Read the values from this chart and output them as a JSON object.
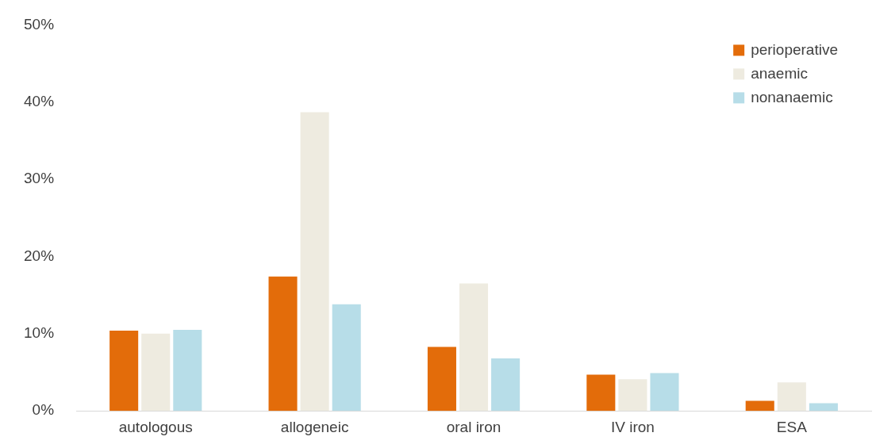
{
  "chart_data": {
    "type": "bar",
    "categories": [
      "autologous",
      "allogeneic",
      "oral iron",
      "IV iron",
      "ESA"
    ],
    "series": [
      {
        "name": "perioperative",
        "color": "#e36c0a",
        "values": [
          10.4,
          17.4,
          8.3,
          4.7,
          1.3
        ]
      },
      {
        "name": "anaemic",
        "color": "#eeebe0",
        "values": [
          10.0,
          38.7,
          16.5,
          4.1,
          3.7
        ]
      },
      {
        "name": "nonanaemic",
        "color": "#b7dde8",
        "values": [
          10.5,
          13.8,
          6.8,
          4.9,
          1.0
        ]
      }
    ],
    "ylim": [
      0,
      50
    ],
    "yticks": [
      {
        "value": 0,
        "label": "0%"
      },
      {
        "value": 10,
        "label": "10%"
      },
      {
        "value": 20,
        "label": "20%"
      },
      {
        "value": 30,
        "label": "30%"
      },
      {
        "value": 40,
        "label": "40%"
      },
      {
        "value": 50,
        "label": "50%"
      }
    ],
    "grid": false,
    "legend": "top right"
  }
}
